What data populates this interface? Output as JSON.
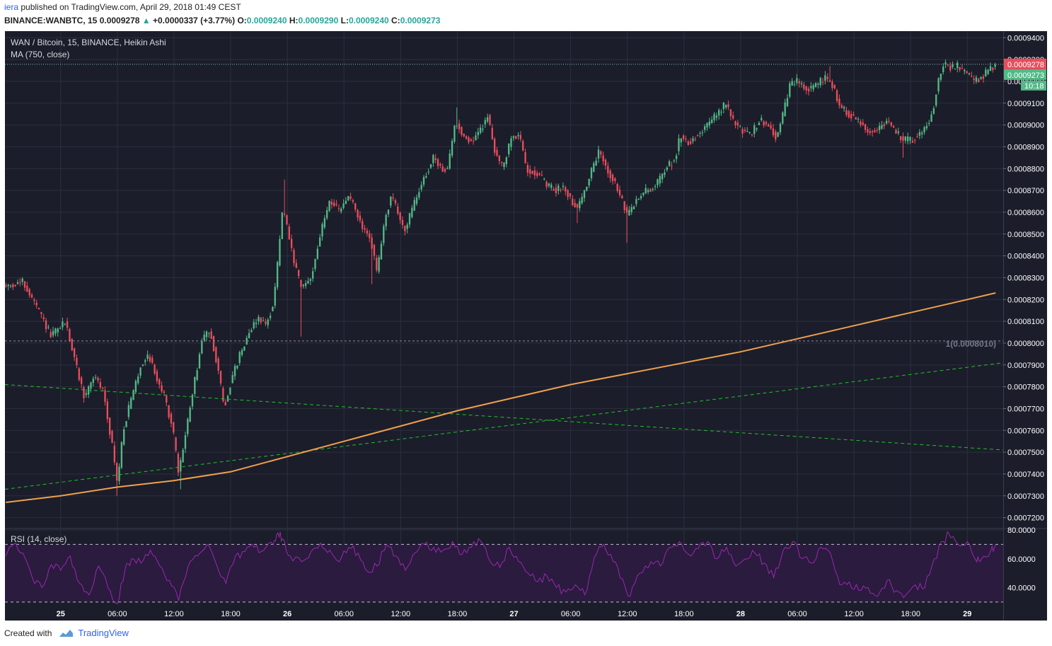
{
  "header": {
    "author": "iera",
    "published": "published on TradingView.com, April 29, 2018 01:49 CEST",
    "symbol": "BINANCE:WANBTC, 15",
    "last": "0.0009278",
    "change": "+0.0000337 (+3.77%)",
    "o_label": "O:",
    "o": "0.0009240",
    "h_label": "H:",
    "h": "0.0009290",
    "l_label": "L:",
    "l": "0.0009240",
    "c_label": "C:",
    "c": "0.0009273"
  },
  "footer": {
    "created": "Created with",
    "brand": "TradingView"
  },
  "colors": {
    "background": "#1b1d2a",
    "grid": "#2c2f3e",
    "up": "#53b987",
    "down": "#eb4d5c",
    "ma": "#f0a04b",
    "trendline": "#22c12a",
    "rsi": "#9c27b0",
    "price_tag": "#eb4d5c",
    "close_tag": "#53b987"
  },
  "chart_data": [
    {
      "type": "candlestick",
      "title": "WAN / Bitcoin, 15, BINANCE, Heikin Ashi",
      "indicator": "MA (750, close)",
      "ylim": [
        0.000715,
        0.000943
      ],
      "y_ticks": [
        "0.0009400",
        "0.0009300",
        "0.0009200",
        "0.0009100",
        "0.0009000",
        "0.0008900",
        "0.0008800",
        "0.0008700",
        "0.0008600",
        "0.0008500",
        "0.0008400",
        "0.0008300",
        "0.0008200",
        "0.0008100",
        "0.0008000",
        "0.0007900",
        "0.0007800",
        "0.0007700",
        "0.0007600",
        "0.0007500",
        "0.0007400",
        "0.0007300",
        "0.0007200"
      ],
      "x_ticks": [
        {
          "label": "25",
          "t": 24
        },
        {
          "label": "06:00",
          "t": 30
        },
        {
          "label": "12:00",
          "t": 36
        },
        {
          "label": "18:00",
          "t": 42
        },
        {
          "label": "26",
          "t": 48
        },
        {
          "label": "06:00",
          "t": 54
        },
        {
          "label": "12:00",
          "t": 60
        },
        {
          "label": "18:00",
          "t": 66
        },
        {
          "label": "27",
          "t": 72
        },
        {
          "label": "06:00",
          "t": 78
        },
        {
          "label": "12:00",
          "t": 84
        },
        {
          "label": "18:00",
          "t": 90
        },
        {
          "label": "28",
          "t": 96
        },
        {
          "label": "06:00",
          "t": 102
        },
        {
          "label": "12:00",
          "t": 108
        },
        {
          "label": "18:00",
          "t": 114
        },
        {
          "label": "29",
          "t": 120
        }
      ],
      "x_range": [
        18.1,
        123.8
      ],
      "price_path": [
        [
          18.2,
          0.000826
        ],
        [
          20.0,
          0.000828
        ],
        [
          21.5,
          0.000816
        ],
        [
          23.0,
          0.000803
        ],
        [
          24.5,
          0.00081
        ],
        [
          25.5,
          0.000792
        ],
        [
          26.5,
          0.000775
        ],
        [
          27.5,
          0.000785
        ],
        [
          28.5,
          0.000778
        ],
        [
          29.5,
          0.000752
        ],
        [
          30.0,
          0.000735
        ],
        [
          30.6,
          0.00076
        ],
        [
          31.5,
          0.000775
        ],
        [
          32.5,
          0.00079
        ],
        [
          33.3,
          0.000795
        ],
        [
          34.0,
          0.000786
        ],
        [
          35.0,
          0.000775
        ],
        [
          35.8,
          0.000762
        ],
        [
          36.5,
          0.00074
        ],
        [
          37.2,
          0.000758
        ],
        [
          38.0,
          0.000778
        ],
        [
          39.0,
          0.000802
        ],
        [
          39.8,
          0.000806
        ],
        [
          40.6,
          0.00079
        ],
        [
          41.3,
          0.00077
        ],
        [
          42.0,
          0.000782
        ],
        [
          43.0,
          0.000795
        ],
        [
          44.0,
          0.000806
        ],
        [
          45.0,
          0.000812
        ],
        [
          45.7,
          0.000808
        ],
        [
          46.5,
          0.000818
        ],
        [
          47.0,
          0.000838
        ],
        [
          47.5,
          0.000862
        ],
        [
          48.0,
          0.000852
        ],
        [
          48.8,
          0.000835
        ],
        [
          49.5,
          0.000825
        ],
        [
          50.5,
          0.00083
        ],
        [
          51.5,
          0.00085
        ],
        [
          52.5,
          0.000866
        ],
        [
          53.5,
          0.00086
        ],
        [
          54.5,
          0.000868
        ],
        [
          55.3,
          0.00086
        ],
        [
          56.0,
          0.000852
        ],
        [
          56.8,
          0.000848
        ],
        [
          57.5,
          0.000832
        ],
        [
          58.3,
          0.000856
        ],
        [
          59.0,
          0.000868
        ],
        [
          60.0,
          0.000856
        ],
        [
          60.5,
          0.000852
        ],
        [
          61.5,
          0.000865
        ],
        [
          62.5,
          0.000876
        ],
        [
          63.5,
          0.000885
        ],
        [
          64.3,
          0.00088
        ],
        [
          65.0,
          0.00088
        ],
        [
          65.8,
          0.000902
        ],
        [
          66.5,
          0.000896
        ],
        [
          67.5,
          0.000892
        ],
        [
          68.5,
          0.000898
        ],
        [
          69.2,
          0.000904
        ],
        [
          70.0,
          0.000888
        ],
        [
          70.8,
          0.00088
        ],
        [
          71.7,
          0.000894
        ],
        [
          72.5,
          0.000896
        ],
        [
          73.3,
          0.00088
        ],
        [
          74.5,
          0.000878
        ],
        [
          75.5,
          0.000872
        ],
        [
          76.5,
          0.00087
        ],
        [
          77.3,
          0.000872
        ],
        [
          78.0,
          0.000866
        ],
        [
          78.7,
          0.000862
        ],
        [
          79.5,
          0.00087
        ],
        [
          80.3,
          0.00088
        ],
        [
          81.0,
          0.000888
        ],
        [
          81.8,
          0.00088
        ],
        [
          82.5,
          0.000875
        ],
        [
          83.2,
          0.000868
        ],
        [
          84.0,
          0.000858
        ],
        [
          85.0,
          0.000866
        ],
        [
          86.0,
          0.00087
        ],
        [
          87.0,
          0.000872
        ],
        [
          88.0,
          0.00088
        ],
        [
          89.0,
          0.000884
        ],
        [
          89.6,
          0.000895
        ],
        [
          90.5,
          0.000892
        ],
        [
          91.5,
          0.000896
        ],
        [
          92.5,
          0.0009
        ],
        [
          93.5,
          0.000905
        ],
        [
          94.5,
          0.00091
        ],
        [
          95.2,
          0.000902
        ],
        [
          96.0,
          0.000898
        ],
        [
          97.0,
          0.000895
        ],
        [
          98.0,
          0.000902
        ],
        [
          99.0,
          0.0009
        ],
        [
          99.8,
          0.000894
        ],
        [
          100.5,
          0.000905
        ],
        [
          101.2,
          0.000918
        ],
        [
          102.0,
          0.00092
        ],
        [
          103.0,
          0.000916
        ],
        [
          104.0,
          0.000918
        ],
        [
          105.0,
          0.000922
        ],
        [
          105.8,
          0.000918
        ],
        [
          106.5,
          0.000908
        ],
        [
          107.5,
          0.000905
        ],
        [
          108.5,
          0.000902
        ],
        [
          109.5,
          0.000897
        ],
        [
          110.5,
          0.000898
        ],
        [
          111.5,
          0.000902
        ],
        [
          112.5,
          0.000896
        ],
        [
          113.3,
          0.000893
        ],
        [
          114.0,
          0.000893
        ],
        [
          115.0,
          0.000896
        ],
        [
          116.0,
          0.000902
        ],
        [
          116.5,
          0.00091
        ],
        [
          117.0,
          0.000922
        ],
        [
          117.5,
          0.000928
        ],
        [
          118.3,
          0.000926
        ],
        [
          119.0,
          0.000927
        ],
        [
          120.0,
          0.000923
        ],
        [
          120.7,
          0.00092
        ],
        [
          121.5,
          0.000922
        ],
        [
          122.5,
          0.000926
        ],
        [
          123.0,
          0.000928
        ]
      ],
      "wick_extremes": [
        {
          "t": 29.9,
          "low": 0.00073
        },
        {
          "t": 36.6,
          "low": 0.000733
        },
        {
          "t": 49.4,
          "low": 0.000803
        },
        {
          "t": 47.7,
          "high": 0.000875
        },
        {
          "t": 56.9,
          "low": 0.000827
        },
        {
          "t": 66.0,
          "high": 0.000908
        },
        {
          "t": 84.0,
          "low": 0.000846
        },
        {
          "t": 78.8,
          "low": 0.000855
        },
        {
          "t": 105.5,
          "high": 0.000927
        },
        {
          "t": 113.3,
          "low": 0.000885
        },
        {
          "t": 117.6,
          "high": 0.00093
        }
      ],
      "last_price": 0.0009278,
      "last_price_label": "0.0009278",
      "close_price_label": "0.0009273",
      "countdown": "10:18",
      "horizontal_line": {
        "value": 0.000801,
        "label": "1(0.0008010)"
      },
      "trendlines": [
        {
          "from": [
            18.1,
            0.000733
          ],
          "to": [
            123.8,
            0.000791
          ]
        },
        {
          "from": [
            18.1,
            0.000781
          ],
          "to": [
            123.8,
            0.000751
          ]
        }
      ],
      "ma_series": [
        [
          18.2,
          0.000727
        ],
        [
          24.0,
          0.00073
        ],
        [
          30.0,
          0.000734
        ],
        [
          36.0,
          0.000737
        ],
        [
          42.0,
          0.000741
        ],
        [
          48.0,
          0.000748
        ],
        [
          54.0,
          0.000755
        ],
        [
          60.0,
          0.000762
        ],
        [
          66.0,
          0.000769
        ],
        [
          72.0,
          0.000775
        ],
        [
          78.0,
          0.000781
        ],
        [
          84.0,
          0.000786
        ],
        [
          90.0,
          0.000791
        ],
        [
          96.0,
          0.000796
        ],
        [
          102.0,
          0.000802
        ],
        [
          108.0,
          0.000808
        ],
        [
          114.0,
          0.000814
        ],
        [
          120.0,
          0.00082
        ],
        [
          123.0,
          0.000823
        ]
      ]
    },
    {
      "type": "line",
      "title": "RSI (14, close)",
      "ylim": [
        28,
        81
      ],
      "y_ticks": [
        "80.0000",
        "60.0000",
        "40.0000"
      ],
      "band": [
        30,
        70
      ],
      "series": [
        {
          "values": [
            [
              18.2,
              62
            ],
            [
              19.0,
              70
            ],
            [
              20.0,
              64
            ],
            [
              21.0,
              47
            ],
            [
              22.0,
              40
            ],
            [
              23.0,
              56
            ],
            [
              24.0,
              52
            ],
            [
              25.0,
              62
            ],
            [
              26.0,
              43
            ],
            [
              27.0,
              35
            ],
            [
              28.0,
              55
            ],
            [
              29.0,
              40
            ],
            [
              30.0,
              29
            ],
            [
              30.8,
              52
            ],
            [
              31.5,
              60
            ],
            [
              32.5,
              57
            ],
            [
              33.5,
              66
            ],
            [
              34.5,
              55
            ],
            [
              35.5,
              45
            ],
            [
              36.5,
              31
            ],
            [
              37.5,
              55
            ],
            [
              38.5,
              62
            ],
            [
              39.5,
              70
            ],
            [
              40.5,
              56
            ],
            [
              41.5,
              43
            ],
            [
              42.5,
              62
            ],
            [
              43.5,
              65
            ],
            [
              44.5,
              68
            ],
            [
              45.5,
              66
            ],
            [
              46.5,
              70
            ],
            [
              47.0,
              78
            ],
            [
              47.5,
              74
            ],
            [
              48.3,
              62
            ],
            [
              49.5,
              58
            ],
            [
              50.5,
              65
            ],
            [
              51.5,
              71
            ],
            [
              52.5,
              66
            ],
            [
              53.5,
              58
            ],
            [
              54.5,
              68
            ],
            [
              55.5,
              64
            ],
            [
              56.5,
              51
            ],
            [
              57.5,
              55
            ],
            [
              58.5,
              70
            ],
            [
              59.5,
              62
            ],
            [
              60.5,
              52
            ],
            [
              61.5,
              64
            ],
            [
              62.5,
              70
            ],
            [
              63.5,
              68
            ],
            [
              64.5,
              66
            ],
            [
              65.5,
              72
            ],
            [
              66.5,
              63
            ],
            [
              67.5,
              68
            ],
            [
              68.5,
              72
            ],
            [
              69.5,
              58
            ],
            [
              70.5,
              54
            ],
            [
              71.5,
              68
            ],
            [
              72.5,
              58
            ],
            [
              73.5,
              50
            ],
            [
              74.5,
              44
            ],
            [
              75.5,
              48
            ],
            [
              76.5,
              40
            ],
            [
              77.5,
              37
            ],
            [
              78.5,
              42
            ],
            [
              79.5,
              35
            ],
            [
              80.5,
              61
            ],
            [
              81.5,
              70
            ],
            [
              82.5,
              58
            ],
            [
              83.5,
              46
            ],
            [
              84.3,
              34
            ],
            [
              85.3,
              50
            ],
            [
              86.5,
              58
            ],
            [
              87.5,
              55
            ],
            [
              88.5,
              68
            ],
            [
              89.5,
              72
            ],
            [
              90.5,
              63
            ],
            [
              91.5,
              67
            ],
            [
              92.5,
              72
            ],
            [
              93.5,
              60
            ],
            [
              94.5,
              68
            ],
            [
              95.5,
              55
            ],
            [
              96.5,
              60
            ],
            [
              97.5,
              64
            ],
            [
              98.5,
              57
            ],
            [
              99.5,
              47
            ],
            [
              100.5,
              66
            ],
            [
              101.5,
              72
            ],
            [
              102.5,
              60
            ],
            [
              103.5,
              57
            ],
            [
              104.5,
              68
            ],
            [
              105.5,
              64
            ],
            [
              106.5,
              42
            ],
            [
              107.5,
              44
            ],
            [
              108.5,
              38
            ],
            [
              109.5,
              40
            ],
            [
              110.5,
              34
            ],
            [
              111.5,
              45
            ],
            [
              112.5,
              38
            ],
            [
              113.5,
              35
            ],
            [
              114.5,
              42
            ],
            [
              115.5,
              40
            ],
            [
              116.5,
              60
            ],
            [
              117.5,
              72
            ],
            [
              118.0,
              78
            ],
            [
              119.0,
              70
            ],
            [
              120.0,
              72
            ],
            [
              121.0,
              58
            ],
            [
              121.5,
              60
            ],
            [
              122.5,
              66
            ],
            [
              123.0,
              70
            ]
          ]
        }
      ]
    }
  ]
}
